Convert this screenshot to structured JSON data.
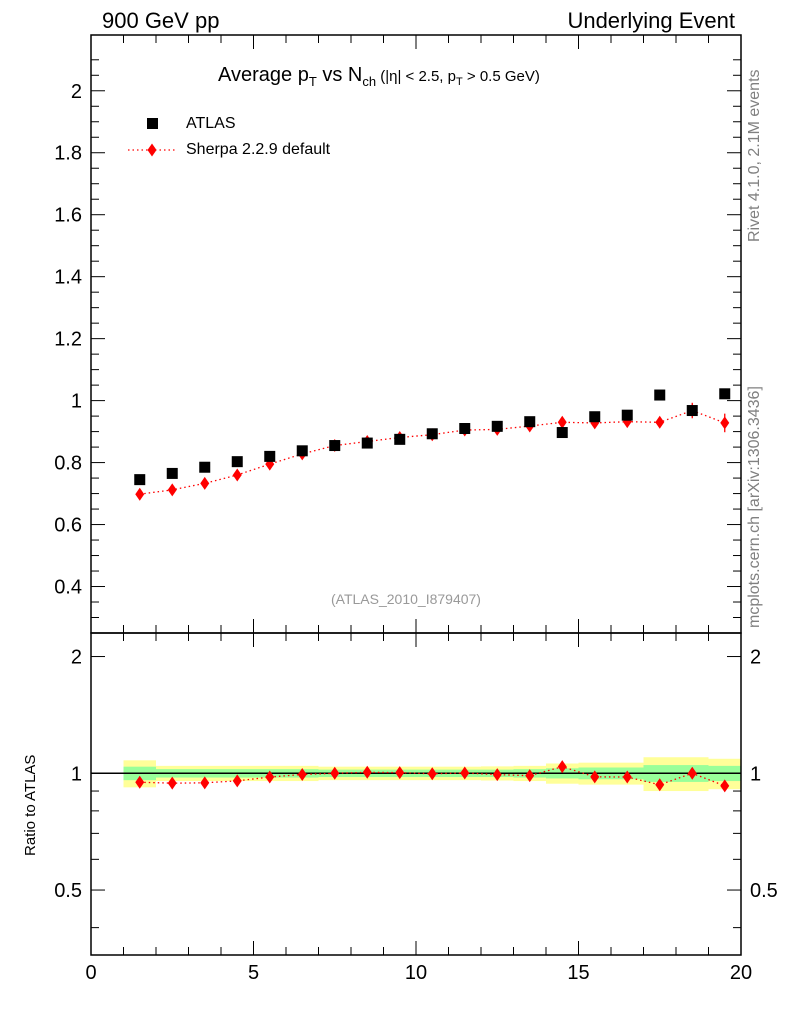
{
  "header": {
    "left": "900 GeV pp",
    "right": "Underlying Event"
  },
  "side_labels": {
    "rivet": "Rivet 4.1.0,  2.1M events",
    "ref": "mcplots.cern.ch [arXiv:1306.3436]"
  },
  "title": {
    "main": "Average p",
    "sub_t": "T",
    "vs": " vs N",
    "sub_ch": "ch",
    "cuts_a": " (|η| < 2.5, p",
    "cuts_sub": "T",
    "cuts_b": " > 0.5 GeV)"
  },
  "legend": {
    "atlas": "ATLAS",
    "sherpa": "Sherpa 2.2.9 default"
  },
  "watermark": "(ATLAS_2010_I879407)",
  "ratio_ylabel": "Ratio to ATLAS",
  "colors": {
    "data": "#000000",
    "mc": "#ff0000",
    "band_inner": "#99ff99",
    "band_outer": "#ffff99"
  },
  "chart_data": {
    "type": "scatter",
    "title": "Average pT vs Nch (|η| < 2.5, pT > 0.5 GeV)",
    "xlim": [
      0,
      20
    ],
    "x_ticks": [
      "0",
      "5",
      "10",
      "15",
      "20"
    ],
    "main_panel": {
      "ylim": [
        0.25,
        2.18
      ],
      "y_ticks": [
        "0.4",
        "0.6",
        "0.8",
        "1",
        "1.2",
        "1.4",
        "1.6",
        "1.8",
        "2"
      ],
      "x": [
        1.5,
        2.5,
        3.5,
        4.5,
        5.5,
        6.5,
        7.5,
        8.5,
        9.5,
        10.5,
        11.5,
        12.5,
        13.5,
        14.5,
        15.5,
        16.5,
        17.5,
        18.5,
        19.5
      ],
      "series": [
        {
          "name": "ATLAS",
          "values": [
            0.745,
            0.765,
            0.785,
            0.803,
            0.82,
            0.838,
            0.855,
            0.863,
            0.875,
            0.893,
            0.91,
            0.917,
            0.932,
            0.897,
            0.948,
            0.953,
            1.018,
            0.968,
            1.022
          ]
        },
        {
          "name": "Sherpa 2.2.9 default",
          "values": [
            0.698,
            0.712,
            0.733,
            0.76,
            0.795,
            0.828,
            0.855,
            0.868,
            0.881,
            0.89,
            0.905,
            0.907,
            0.918,
            0.93,
            0.928,
            0.932,
            0.93,
            0.968,
            0.928
          ],
          "errors": [
            0.008,
            0.006,
            0.006,
            0.006,
            0.006,
            0.006,
            0.006,
            0.006,
            0.006,
            0.006,
            0.006,
            0.006,
            0.006,
            0.006,
            0.008,
            0.01,
            0.015,
            0.025,
            0.03
          ]
        }
      ]
    },
    "ratio_panel": {
      "ylabel": "Ratio to ATLAS",
      "ylim": [
        0.34,
        2.3
      ],
      "log_y": true,
      "y_ticks": [
        "0.5",
        "1",
        "2"
      ],
      "x": [
        1.5,
        2.5,
        3.5,
        4.5,
        5.5,
        6.5,
        7.5,
        8.5,
        9.5,
        10.5,
        11.5,
        12.5,
        13.5,
        14.5,
        15.5,
        16.5,
        17.5,
        18.5,
        19.5
      ],
      "values": [
        0.948,
        0.943,
        0.945,
        0.956,
        0.978,
        0.993,
        1.0,
        1.006,
        1.004,
        0.997,
        1.002,
        0.992,
        0.986,
        1.04,
        0.979,
        0.978,
        0.934,
        1.0,
        0.928
      ],
      "errors": [
        0.01,
        0.008,
        0.008,
        0.008,
        0.007,
        0.007,
        0.007,
        0.007,
        0.007,
        0.007,
        0.007,
        0.007,
        0.007,
        0.007,
        0.01,
        0.012,
        0.016,
        0.026,
        0.03
      ],
      "band_edges": [
        1,
        2,
        3,
        4,
        5,
        6,
        7,
        8,
        9,
        10,
        11,
        12,
        13,
        14,
        15,
        16,
        17,
        18,
        19,
        20
      ],
      "band_inner": [
        0.04,
        0.025,
        0.025,
        0.025,
        0.025,
        0.025,
        0.022,
        0.022,
        0.022,
        0.022,
        0.022,
        0.022,
        0.025,
        0.03,
        0.035,
        0.035,
        0.05,
        0.05,
        0.045
      ],
      "band_outer": [
        0.08,
        0.045,
        0.045,
        0.045,
        0.045,
        0.045,
        0.04,
        0.04,
        0.04,
        0.04,
        0.04,
        0.042,
        0.045,
        0.06,
        0.065,
        0.065,
        0.1,
        0.1,
        0.09
      ]
    }
  }
}
